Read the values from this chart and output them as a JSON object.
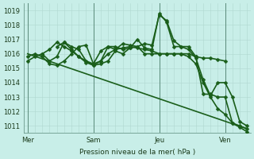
{
  "bg_color": "#c8eee8",
  "grid_color": "#b0d8d0",
  "line_color": "#1a5e1a",
  "xlabel": "Pression niveau de la mer( hPa )",
  "ylim": [
    1010.5,
    1019.5
  ],
  "yticks": [
    1011,
    1012,
    1013,
    1014,
    1015,
    1016,
    1017,
    1018,
    1019
  ],
  "day_labels": [
    "Mer",
    "Sam",
    "Jeu",
    "Ven"
  ],
  "day_positions": [
    0,
    9,
    18,
    27
  ],
  "vline_positions": [
    0,
    9,
    18,
    27
  ],
  "xlim": [
    -0.5,
    30.5
  ],
  "series": [
    {
      "x": [
        0,
        30
      ],
      "y": [
        1016.0,
        1010.8
      ],
      "marker": null,
      "lw": 1.2
    },
    {
      "x": [
        0,
        1,
        2,
        3,
        4,
        5,
        6,
        7,
        8,
        9,
        10,
        11,
        12,
        13,
        14,
        15,
        16,
        17,
        18,
        19,
        20,
        21,
        22,
        23,
        24,
        25,
        26,
        27,
        28,
        29,
        30
      ],
      "y": [
        1015.8,
        1016.0,
        1015.8,
        1015.3,
        1015.2,
        1015.5,
        1016.0,
        1016.5,
        1016.6,
        1015.3,
        1016.2,
        1016.5,
        1016.3,
        1016.7,
        1016.6,
        1016.5,
        1016.7,
        1016.6,
        1018.7,
        1018.3,
        1016.9,
        1016.5,
        1016.3,
        1015.7,
        1014.2,
        1013.1,
        1014.0,
        1014.0,
        1013.0,
        1011.3,
        1011.0
      ],
      "marker": "D",
      "lw": 1.2
    },
    {
      "x": [
        2,
        3,
        4,
        5,
        6,
        7,
        8,
        9,
        10,
        11,
        12,
        13,
        14,
        15,
        16,
        17,
        18,
        19,
        20,
        21,
        22,
        23,
        24,
        25,
        26,
        27,
        28,
        29,
        30
      ],
      "y": [
        1016.0,
        1015.5,
        1015.8,
        1016.8,
        1016.5,
        1016.3,
        1015.5,
        1015.2,
        1015.5,
        1016.5,
        1016.5,
        1016.3,
        1016.4,
        1017.0,
        1016.4,
        1016.3,
        1018.8,
        1018.2,
        1016.5,
        1016.5,
        1016.5,
        1015.8,
        1013.2,
        1013.2,
        1013.0,
        1013.0,
        1011.2,
        1010.9,
        1010.6
      ],
      "marker": "D",
      "lw": 1.2
    },
    {
      "x": [
        0,
        1,
        2,
        3,
        4,
        5,
        6,
        7,
        8,
        9,
        10,
        11,
        12,
        13,
        14,
        15,
        16,
        17,
        18,
        19,
        20,
        21,
        22,
        23,
        24,
        25,
        26,
        27
      ],
      "y": [
        1015.5,
        1015.8,
        1016.0,
        1016.3,
        1016.8,
        1016.5,
        1016.2,
        1015.8,
        1015.5,
        1015.3,
        1015.5,
        1016.0,
        1016.3,
        1016.4,
        1016.5,
        1016.4,
        1016.3,
        1016.2,
        1016.0,
        1016.0,
        1016.0,
        1016.0,
        1016.0,
        1015.8,
        1015.7,
        1015.7,
        1015.6,
        1015.5
      ],
      "marker": "D",
      "lw": 1.2
    },
    {
      "x": [
        4,
        5,
        6,
        7,
        8,
        9,
        10,
        11,
        12,
        13,
        14,
        15,
        16,
        17,
        18,
        19,
        20,
        21,
        22,
        23,
        24,
        25,
        26,
        27,
        28,
        29,
        30
      ],
      "y": [
        1016.5,
        1016.8,
        1016.3,
        1015.8,
        1015.4,
        1015.2,
        1015.3,
        1015.5,
        1016.2,
        1016.0,
        1016.4,
        1016.5,
        1016.0,
        1016.0,
        1016.0,
        1016.0,
        1016.0,
        1016.0,
        1015.8,
        1015.3,
        1014.0,
        1013.0,
        1012.2,
        1011.8,
        1011.2,
        1011.0,
        1010.8
      ],
      "marker": "D",
      "lw": 1.2
    }
  ]
}
